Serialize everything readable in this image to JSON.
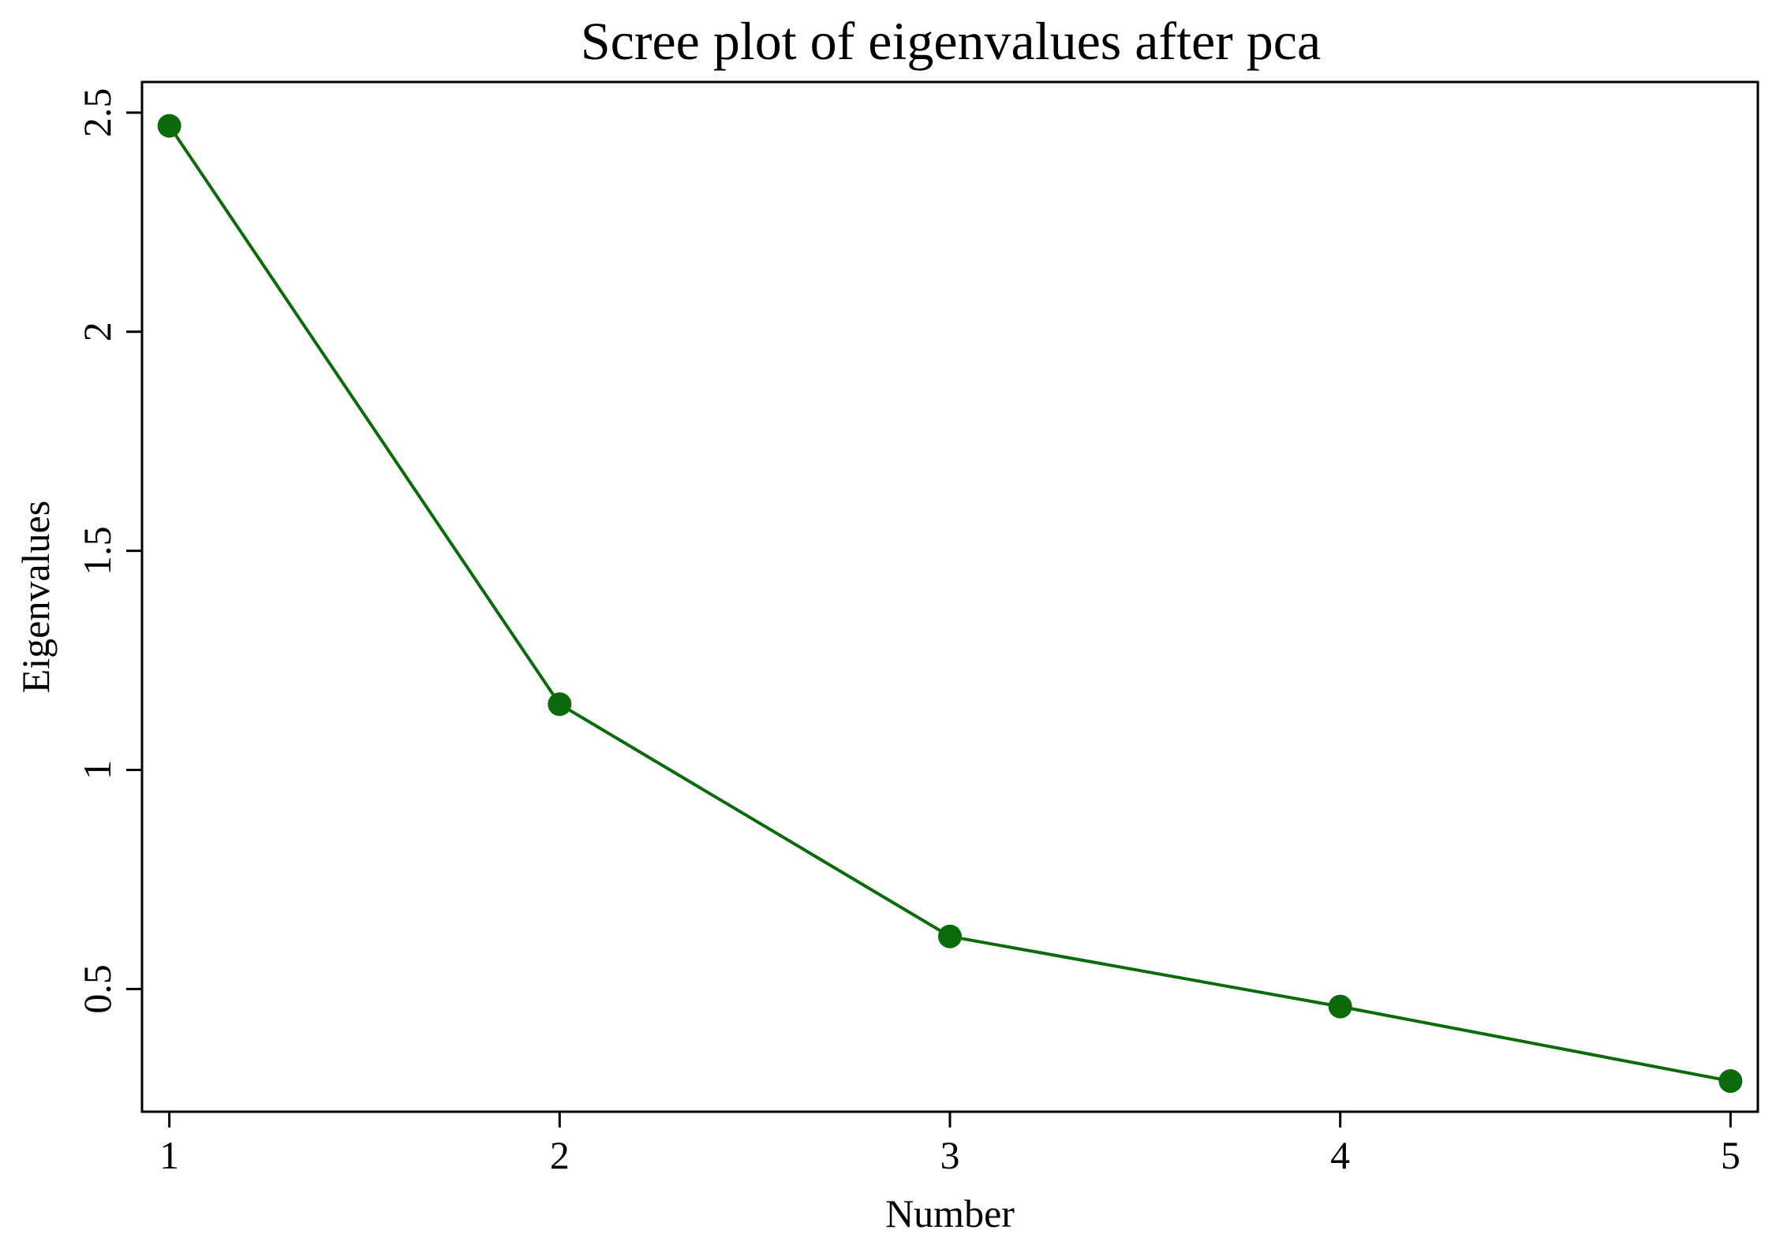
{
  "chart_data": {
    "type": "line",
    "title": "Scree plot of eigenvalues after pca",
    "xlabel": "Number",
    "ylabel": "Eigenvalues",
    "x": [
      1,
      2,
      3,
      4,
      5
    ],
    "series": [
      {
        "values": [
          2.47,
          1.15,
          0.62,
          0.46,
          0.29
        ],
        "color": "#0b6b0b"
      }
    ],
    "xlim": [
      0.93,
      5.07
    ],
    "ylim": [
      0.22,
      2.57
    ],
    "xticks": [
      1,
      2,
      3,
      4,
      5
    ],
    "xtick_labels": [
      "1",
      "2",
      "3",
      "4",
      "5"
    ],
    "yticks": [
      0.5,
      1,
      1.5,
      2,
      2.5
    ],
    "ytick_labels": [
      "0.5",
      "1",
      "1.5",
      "2",
      "2.5"
    ],
    "grid": false,
    "legend": "none"
  }
}
